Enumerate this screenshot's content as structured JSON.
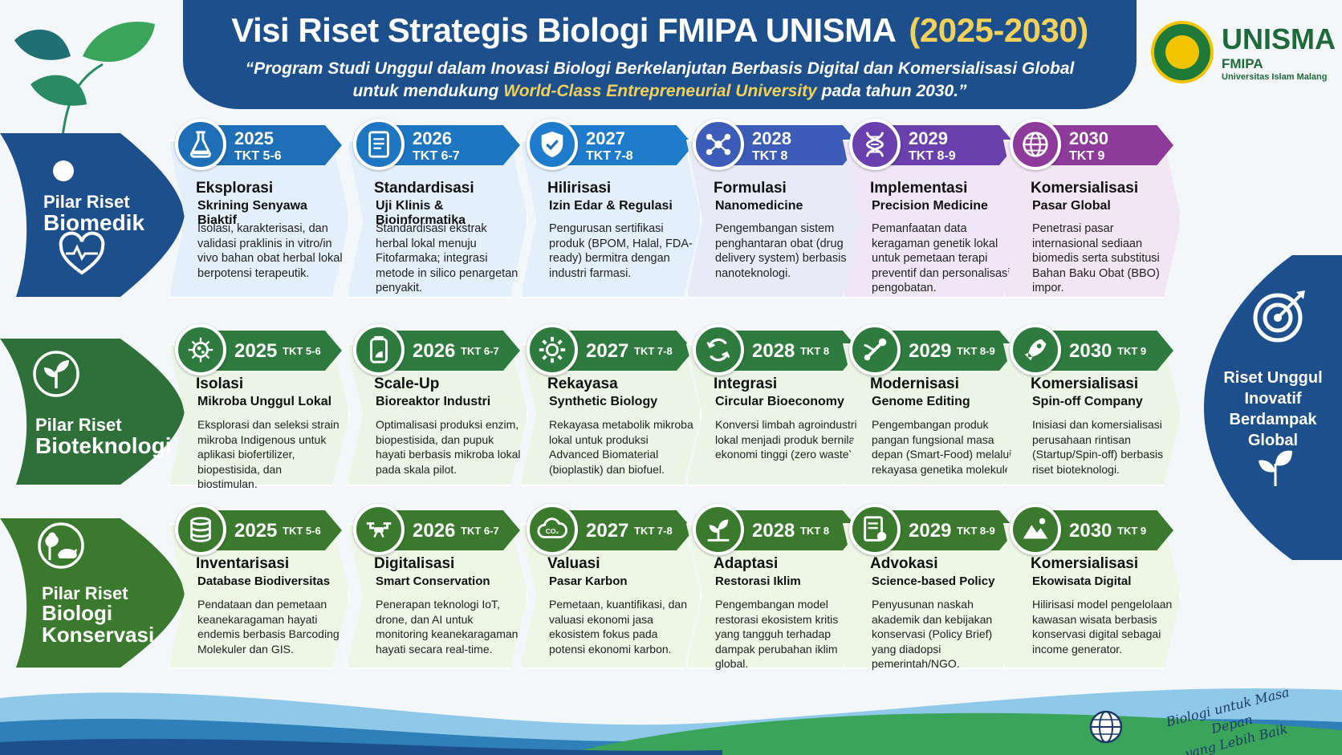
{
  "header": {
    "title_main": "Visi Riset Strategis Biologi FMIPA UNISMA",
    "title_years": "(2025-2030)",
    "tagline_part1": "“Program Studi Unggul dalam Inovasi Biologi Berkelanjutan Berbasis Digital dan Komersialisasi Global",
    "tagline_part2": "untuk mendukung ",
    "tagline_highlight": "World-Class Entrepreneurial University",
    "tagline_part3": " pada tahun 2030.”"
  },
  "logo": {
    "name": "UNISMA",
    "faculty": "FMIPA",
    "university": "Universitas Islam Malang"
  },
  "colors": {
    "navy": "#1d4f8c",
    "green": "#2f7a3e",
    "yellow": "#f2d15a"
  },
  "pillars": [
    {
      "line1": "Pilar Riset",
      "line2": "Biomedik",
      "line3": "",
      "icon": "heart-pulse-icon",
      "milestones": [
        {
          "year": "2025",
          "tkt": "TKT 5-6",
          "title": "Eksplorasi",
          "subtitle": "Skrining Senyawa Biaktif",
          "desc": "Isolasi, karakterisasi, dan validasi praklinis in vitro/in vivo bahan obat herbal lokal berpotensi terapeutik.",
          "icon": "flask-icon"
        },
        {
          "year": "2026",
          "tkt": "TKT 6-7",
          "title": "Standardisasi",
          "subtitle": "Uji Klinis & Bioinformatika",
          "desc": "Standardisasi ekstrak herbal lokal menuju Fitofarmaka; integrasi metode in silico penargetan penyakit.",
          "icon": "document-icon"
        },
        {
          "year": "2027",
          "tkt": "TKT 7-8",
          "title": "Hilirisasi",
          "subtitle": "Izin Edar & Regulasi",
          "desc": "Pengurusan sertifikasi produk (BPOM, Halal, FDA-ready) bermitra dengan industri farmasi.",
          "icon": "shield-check-icon"
        },
        {
          "year": "2028",
          "tkt": "TKT 8",
          "title": "Formulasi",
          "subtitle": "Nanomedicine",
          "desc": "Pengembangan sistem penghantaran obat (drug delivery system) berbasis nanoteknologi.",
          "icon": "molecule-icon"
        },
        {
          "year": "2029",
          "tkt": "TKT 8-9",
          "title": "Implementasi",
          "subtitle": "Precision Medicine",
          "desc": "Pemanfaatan data keragaman genetik lokal untuk pemetaan terapi preventif dan personalisasi pengobatan.",
          "icon": "dna-icon"
        },
        {
          "year": "2030",
          "tkt": "TKT 9",
          "title": "Komersialisasi",
          "subtitle": "Pasar Global",
          "desc": "Penetrasi pasar internasional sediaan biomedis serta substitusi Bahan Baku Obat (BBO) impor.",
          "icon": "globe-icon"
        }
      ]
    },
    {
      "line1": "Pilar Riset",
      "line2": "Bioteknologi",
      "line3": "",
      "icon": "sprout-icon",
      "milestones": [
        {
          "year": "2025",
          "tkt": "TKT 5-6",
          "title": "Isolasi",
          "subtitle": "Mikroba Unggul Lokal",
          "desc": "Eksplorasi dan seleksi strain mikroba Indigenous untuk aplikasi biofertilizer, biopestisida, dan biostimulan.",
          "icon": "microbe-icon"
        },
        {
          "year": "2026",
          "tkt": "TKT 6-7",
          "title": "Scale-Up",
          "subtitle": "Bioreaktor Industri",
          "desc": "Optimalisasi produksi enzim, biopestisida, dan pupuk hayati berbasis mikroba lokal pada skala pilot.",
          "icon": "bioreactor-icon"
        },
        {
          "year": "2027",
          "tkt": "TKT 7-8",
          "title": "Rekayasa",
          "subtitle": "Synthetic Biology",
          "desc": "Rekayasa metabolik mikroba lokal untuk produksi Advanced Biomaterial (bioplastik) dan biofuel.",
          "icon": "gear-icon"
        },
        {
          "year": "2028",
          "tkt": "TKT 8",
          "title": "Integrasi",
          "subtitle": "Circular Bioeconomy",
          "desc": "Konversi limbah agroindustri lokal menjadi produk bernilai ekonomi tinggi (zero waste).",
          "icon": "recycle-icon"
        },
        {
          "year": "2029",
          "tkt": "TKT 8-9",
          "title": "Modernisasi",
          "subtitle": "Genome Editing",
          "desc": "Pengembangan produk pangan fungsional masa depan (Smart-Food) melalui rekayasa genetika molekuler.",
          "icon": "gene-edit-icon"
        },
        {
          "year": "2030",
          "tkt": "TKT 9",
          "title": "Komersialisasi",
          "subtitle": "Spin-off Company",
          "desc": "Inisiasi dan komersialisasi perusahaan rintisan (Startup/Spin-off) berbasis riset bioteknologi.",
          "icon": "rocket-icon"
        }
      ]
    },
    {
      "line1": "Pilar Riset",
      "line2": "Biologi",
      "line3": "Konservasi",
      "icon": "tree-animal-icon",
      "milestones": [
        {
          "year": "2025",
          "tkt": "TKT 5-6",
          "title": "Inventarisasi",
          "subtitle": "Database Biodiversitas",
          "desc": "Pendataan dan pemetaan keanekaragaman hayati endemis berbasis Barcoding Molekuler dan GIS.",
          "icon": "database-icon"
        },
        {
          "year": "2026",
          "tkt": "TKT 6-7",
          "title": "Digitalisasi",
          "subtitle": "Smart Conservation",
          "desc": "Penerapan teknologi IoT, drone, dan AI untuk monitoring keanekaragaman hayati secara real-time.",
          "icon": "drone-icon"
        },
        {
          "year": "2027",
          "tkt": "TKT 7-8",
          "title": "Valuasi",
          "subtitle": "Pasar Karbon",
          "desc": "Pemetaan, kuantifikasi, dan valuasi ekonomi jasa ekosistem fokus pada potensi ekonomi karbon.",
          "icon": "co2-icon"
        },
        {
          "year": "2028",
          "tkt": "TKT 8",
          "title": "Adaptasi",
          "subtitle": "Restorasi Iklim",
          "desc": "Pengembangan model restorasi ekosistem kritis yang tangguh terhadap dampak perubahan iklim global.",
          "icon": "seedling-icon"
        },
        {
          "year": "2029",
          "tkt": "TKT 8-9",
          "title": "Advokasi",
          "subtitle": "Science-based Policy",
          "desc": "Penyusunan naskah akademik dan kebijakan konservasi (Policy Brief) yang diadopsi pemerintah/NGO.",
          "icon": "policy-icon"
        },
        {
          "year": "2030",
          "tkt": "TKT 9",
          "title": "Komersialisasi",
          "subtitle": "Ekowisata Digital",
          "desc": "Hilirisasi model pengelolaan kawasan wisata berbasis konservasi digital sebagai income generator.",
          "icon": "mountain-icon"
        }
      ]
    }
  ],
  "goal": {
    "line1": "Riset Unggul",
    "line2": "Inovatif",
    "line3": "Berdampak Global"
  },
  "footer": {
    "slogan_line1": "Biologi untuk Masa Depan",
    "slogan_line2": "yang Lebih Baik"
  }
}
